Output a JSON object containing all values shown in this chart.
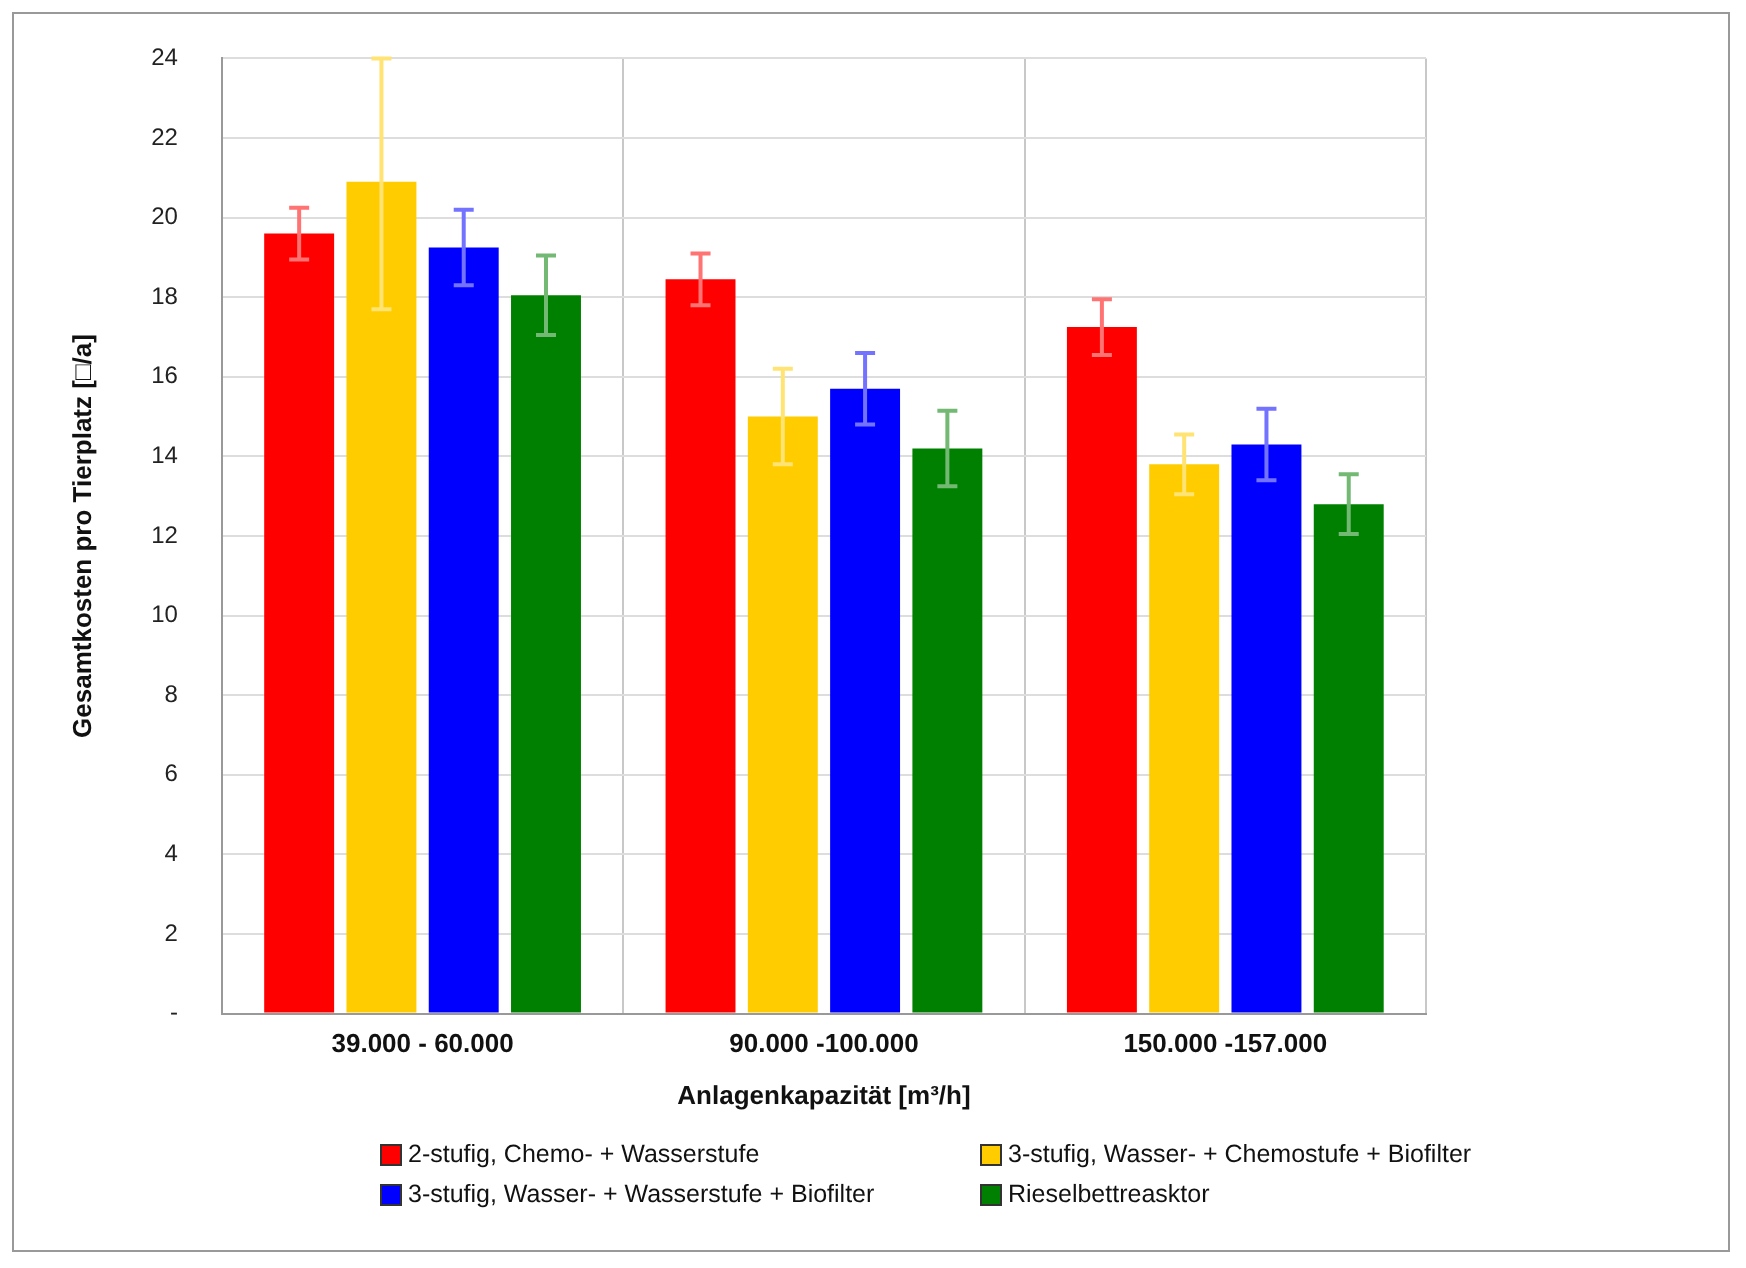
{
  "chart_data": {
    "type": "bar",
    "xlabel": "Anlagenkapazität [m³/h]",
    "ylabel": "Gesamtkosten pro Tierplatz [□/a]",
    "categories": [
      "39.000 - 60.000",
      "90.000 -100.000",
      "150.000 -157.000"
    ],
    "series": [
      {
        "name": "2-stufig, Chemo- + Wasserstufe",
        "color": "#ff0000",
        "values": [
          19.6,
          18.45,
          17.25
        ],
        "errors": [
          0.65,
          0.65,
          0.7
        ]
      },
      {
        "name": "3-stufig, Wasser- + Chemostufe + Biofilter",
        "color": "#ffcc00",
        "values": [
          20.9,
          15.0,
          13.8
        ],
        "errors": [
          [
            17.7,
            24
          ],
          1.2,
          0.75
        ]
      },
      {
        "name": "3-stufig, Wasser- + Wasserstufe + Biofilter",
        "color": "#0000ff",
        "values": [
          19.25,
          15.7,
          14.3
        ],
        "errors": [
          0.95,
          0.9,
          0.9
        ]
      },
      {
        "name": "Rieselbettreasktor",
        "color": "#008000",
        "values": [
          18.05,
          14.2,
          12.8
        ],
        "errors": [
          1.0,
          0.95,
          0.75
        ]
      }
    ],
    "ylim": [
      0,
      24
    ],
    "yticks": [
      {
        "value": 0,
        "label": "-"
      },
      2,
      4,
      6,
      8,
      10,
      12,
      14,
      16,
      18,
      20,
      22,
      24
    ],
    "grid": true,
    "legend": "bottom"
  }
}
